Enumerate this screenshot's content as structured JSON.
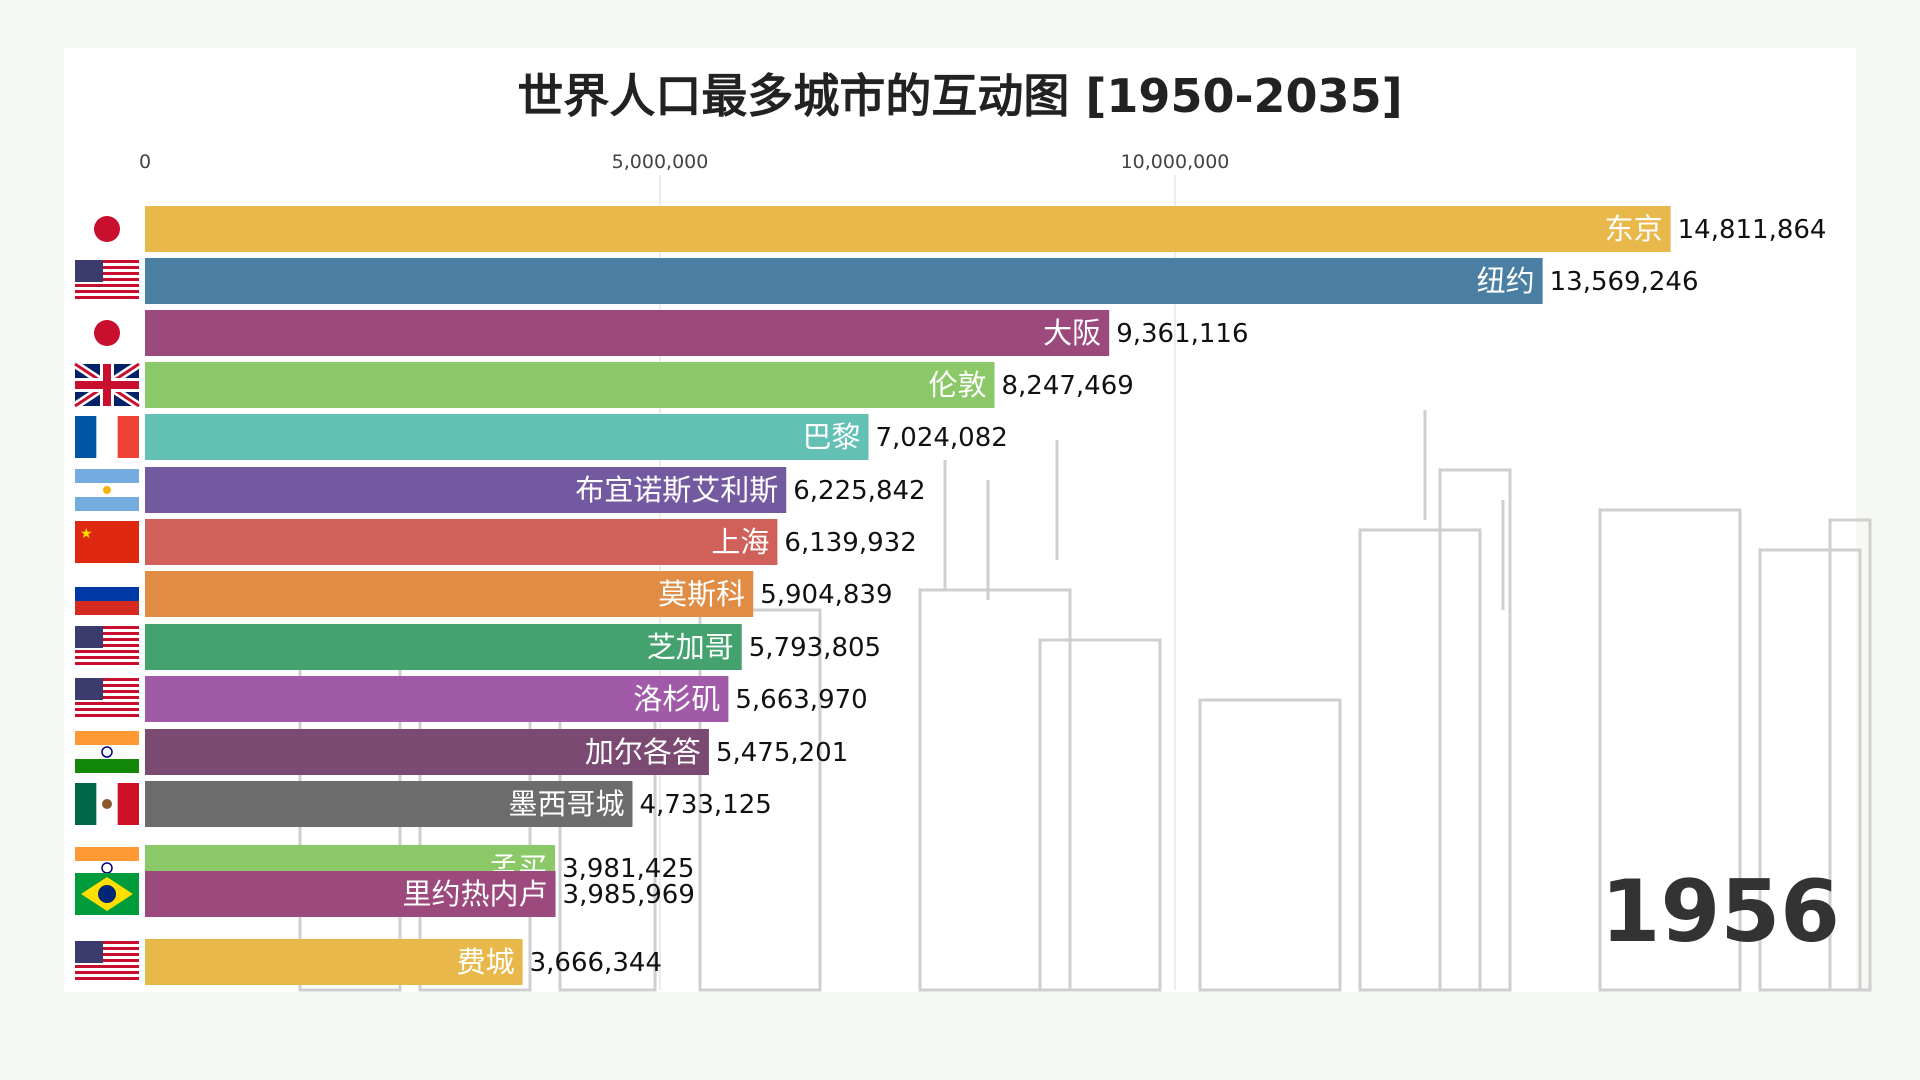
{
  "title": "世界人口最多城市的互动图 [1950-2035]",
  "year": "1956",
  "chart_data": {
    "type": "bar",
    "orientation": "horizontal",
    "title": "世界人口最多城市的互动图 [1950-2035]",
    "xlabel": "",
    "ylabel": "",
    "xlim": [
      0,
      16200000
    ],
    "xticks": [
      0,
      5000000,
      10000000
    ],
    "tick_labels": [
      "0",
      "5,000,000",
      "10,000,000"
    ],
    "grid": true,
    "bars": [
      {
        "city": "东京",
        "value": 14811864,
        "value_label": "14,811,864",
        "color": "#e8b84a",
        "flag": "japan-flag"
      },
      {
        "city": "纽约",
        "value": 13569246,
        "value_label": "13,569,246",
        "color": "#4a7fa3",
        "flag": "usa-flag"
      },
      {
        "city": "大阪",
        "value": 9361116,
        "value_label": "9,361,116",
        "color": "#9c4a7e",
        "flag": "japan-flag"
      },
      {
        "city": "伦敦",
        "value": 8247469,
        "value_label": "8,247,469",
        "color": "#8ac868",
        "flag": "uk-flag"
      },
      {
        "city": "巴黎",
        "value": 7024082,
        "value_label": "7,024,082",
        "color": "#62c0b4",
        "flag": "france-flag"
      },
      {
        "city": "布宜诺斯艾利斯",
        "value": 6225842,
        "value_label": "6,225,842",
        "color": "#735aa0",
        "flag": "argentina-flag"
      },
      {
        "city": "上海",
        "value": 6139932,
        "value_label": "6,139,932",
        "color": "#d0605a",
        "flag": "china-flag"
      },
      {
        "city": "莫斯科",
        "value": 5904839,
        "value_label": "5,904,839",
        "color": "#e08c44",
        "flag": "russia-flag"
      },
      {
        "city": "芝加哥",
        "value": 5793805,
        "value_label": "5,793,805",
        "color": "#43a26e",
        "flag": "usa-flag"
      },
      {
        "city": "洛杉矶",
        "value": 5663970,
        "value_label": "5,663,970",
        "color": "#a05aa8",
        "flag": "usa-flag"
      },
      {
        "city": "加尔各答",
        "value": 5475201,
        "value_label": "5,475,201",
        "color": "#7a4a72",
        "flag": "india-flag"
      },
      {
        "city": "墨西哥城",
        "value": 4733125,
        "value_label": "4,733,125",
        "color": "#6c6c6c",
        "flag": "mexico-flag"
      },
      {
        "city": "孟买",
        "value": 3981425,
        "value_label": "3,981,425",
        "color": "#8ac868",
        "flag": "india-flag"
      },
      {
        "city": "里约热内卢",
        "value": 3985969,
        "value_label": "3,985,969",
        "color": "#9c4a7e",
        "flag": "brazil-flag"
      },
      {
        "city": "费城",
        "value": 3666344,
        "value_label": "3,666,344",
        "color": "#e8b84a",
        "flag": "usa-flag"
      }
    ]
  }
}
